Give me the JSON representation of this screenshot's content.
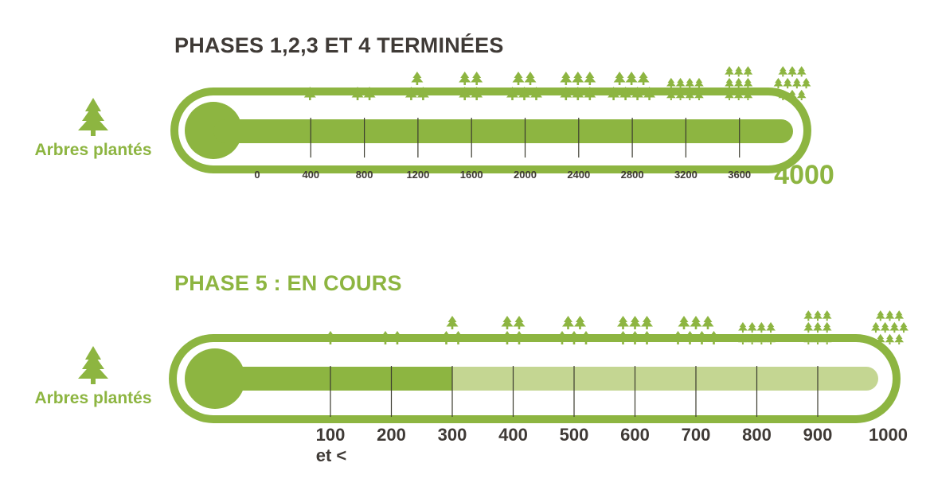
{
  "colors": {
    "green": "#8db541",
    "light_green": "#c4d692",
    "dark_text": "#3f3a36",
    "tick_line": "#3b3b2f",
    "white": "#ffffff"
  },
  "chart_data": [
    {
      "type": "bar",
      "title": "PHASES 1,2,3 ET 4 TERMINÉES",
      "ylabel": "Arbres plantés",
      "ylabel_icon": "tree-icon",
      "ticks": [
        "0",
        "400",
        "800",
        "1200",
        "1600",
        "2000",
        "2400",
        "2800",
        "3200",
        "3600"
      ],
      "tick_values": [
        0,
        400,
        800,
        1200,
        1600,
        2000,
        2400,
        2800,
        3200,
        3600
      ],
      "max_label": "4000",
      "max": 4000,
      "value": 4000,
      "status": "complete",
      "tree_counts": [
        1,
        2,
        3,
        4,
        5,
        6,
        7,
        8,
        9,
        10
      ]
    },
    {
      "type": "bar",
      "title": "PHASE 5 : EN COURS",
      "ylabel": "Arbres plantés",
      "ylabel_icon": "tree-icon",
      "ticks": [
        "100",
        "200",
        "300",
        "400",
        "500",
        "600",
        "700",
        "800",
        "900",
        "1000"
      ],
      "tick_values": [
        100,
        200,
        300,
        400,
        500,
        600,
        700,
        800,
        900,
        1000
      ],
      "first_tick_sublabel": "et <",
      "max": 1000,
      "value": 300,
      "status": "in-progress",
      "tree_counts": [
        1,
        2,
        3,
        4,
        5,
        6,
        7,
        8,
        9,
        10
      ]
    }
  ]
}
